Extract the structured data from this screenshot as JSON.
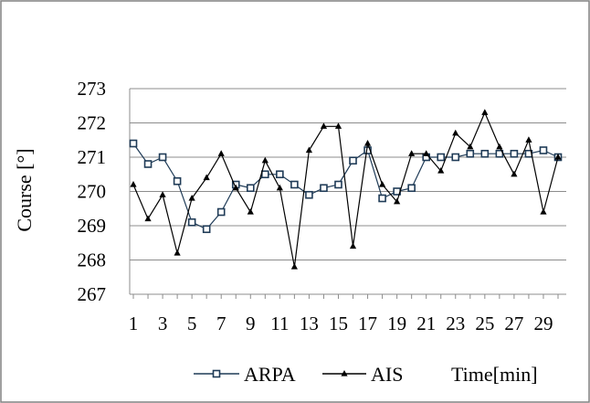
{
  "chart_data": {
    "type": "line",
    "title": "",
    "xlabel": "Time[min]",
    "ylabel": "Course [°]",
    "xlim": [
      1,
      30
    ],
    "ylim": [
      267,
      273
    ],
    "yticks": [
      267,
      268,
      269,
      270,
      271,
      272,
      273
    ],
    "xtick_labels": [
      "1",
      "3",
      "5",
      "7",
      "9",
      "11",
      "13",
      "15",
      "17",
      "19",
      "21",
      "23",
      "25",
      "27",
      "29"
    ],
    "x": [
      1,
      2,
      3,
      4,
      5,
      6,
      7,
      8,
      9,
      10,
      11,
      12,
      13,
      14,
      15,
      16,
      17,
      18,
      19,
      20,
      21,
      22,
      23,
      24,
      25,
      26,
      27,
      28,
      29,
      30
    ],
    "grid": true,
    "legend_position": "bottom",
    "series": [
      {
        "name": "ARPA",
        "marker": "square",
        "color": "#1f3b57",
        "values": [
          271.4,
          270.8,
          271.0,
          270.3,
          269.1,
          268.9,
          269.4,
          270.2,
          270.1,
          270.5,
          270.5,
          270.2,
          269.9,
          270.1,
          270.2,
          270.9,
          271.2,
          269.8,
          270.0,
          270.1,
          271.0,
          271.0,
          271.0,
          271.1,
          271.1,
          271.1,
          271.1,
          271.1,
          271.2,
          271.0
        ]
      },
      {
        "name": "AIS",
        "marker": "triangle",
        "color": "#000000",
        "values": [
          270.2,
          269.2,
          269.9,
          268.2,
          269.8,
          270.4,
          271.1,
          270.1,
          269.4,
          270.9,
          270.1,
          267.8,
          271.2,
          271.9,
          271.9,
          268.4,
          271.4,
          270.2,
          269.7,
          271.1,
          271.1,
          270.6,
          271.7,
          271.3,
          272.3,
          271.3,
          270.5,
          271.5,
          269.4,
          271.0
        ]
      }
    ]
  }
}
